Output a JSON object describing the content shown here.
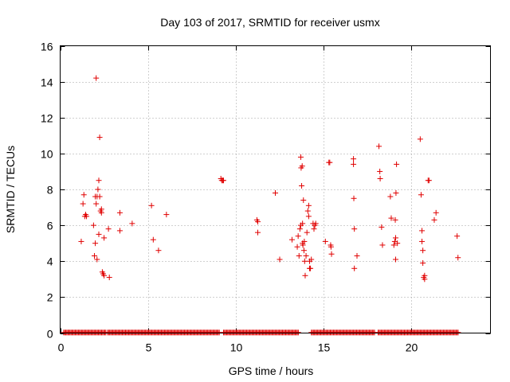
{
  "chart_data": {
    "type": "scatter",
    "title": "Day 103 of 2017, SRMTID for receiver usmx",
    "xlabel": "GPS time / hours",
    "ylabel": "SRMTID / TECUs",
    "xlim": [
      0,
      24.5
    ],
    "ylim": [
      0,
      16
    ],
    "xticks": [
      0,
      5,
      10,
      15,
      20
    ],
    "yticks": [
      0,
      2,
      4,
      6,
      8,
      10,
      12,
      14,
      16
    ],
    "grid": true,
    "marker": "plus",
    "color": "#e00000",
    "baseline": {
      "y": 0.03,
      "segments": [
        [
          0.2,
          2.6
        ],
        [
          2.7,
          9.1
        ],
        [
          9.3,
          13.6
        ],
        [
          14.3,
          17.9
        ],
        [
          18.1,
          22.7
        ]
      ],
      "step": 0.06
    },
    "points": [
      [
        1.2,
        5.1
      ],
      [
        1.3,
        7.2
      ],
      [
        1.35,
        7.7
      ],
      [
        1.4,
        6.5
      ],
      [
        1.45,
        6.6
      ],
      [
        1.5,
        6.5
      ],
      [
        1.9,
        6.0
      ],
      [
        1.95,
        4.3
      ],
      [
        2.0,
        5.0
      ],
      [
        2.0,
        7.6
      ],
      [
        2.05,
        7.2
      ],
      [
        2.05,
        14.2
      ],
      [
        2.1,
        4.1
      ],
      [
        2.1,
        7.6
      ],
      [
        2.15,
        8.0
      ],
      [
        2.2,
        8.5
      ],
      [
        2.2,
        5.5
      ],
      [
        2.25,
        7.6
      ],
      [
        2.25,
        10.9
      ],
      [
        2.3,
        6.8
      ],
      [
        2.35,
        6.7
      ],
      [
        2.35,
        6.9
      ],
      [
        2.4,
        3.4
      ],
      [
        2.45,
        3.3
      ],
      [
        2.5,
        3.2
      ],
      [
        2.5,
        5.3
      ],
      [
        2.75,
        5.8
      ],
      [
        2.8,
        3.1
      ],
      [
        3.4,
        6.7
      ],
      [
        3.4,
        5.7
      ],
      [
        4.1,
        6.1
      ],
      [
        5.2,
        7.1
      ],
      [
        5.3,
        5.2
      ],
      [
        5.6,
        4.6
      ],
      [
        6.05,
        6.6
      ],
      [
        9.15,
        8.6
      ],
      [
        9.2,
        8.5
      ],
      [
        9.25,
        8.5
      ],
      [
        9.3,
        8.5
      ],
      [
        11.2,
        6.3
      ],
      [
        11.25,
        6.2
      ],
      [
        11.25,
        5.6
      ],
      [
        12.25,
        7.8
      ],
      [
        12.5,
        4.1
      ],
      [
        13.2,
        5.2
      ],
      [
        13.5,
        4.8
      ],
      [
        13.55,
        5.4
      ],
      [
        13.6,
        4.3
      ],
      [
        13.65,
        5.8
      ],
      [
        13.7,
        6.0
      ],
      [
        13.7,
        9.8
      ],
      [
        13.72,
        9.2
      ],
      [
        13.75,
        8.2
      ],
      [
        13.78,
        9.3
      ],
      [
        13.8,
        5.0
      ],
      [
        13.8,
        6.1
      ],
      [
        13.82,
        4.9
      ],
      [
        13.85,
        7.4
      ],
      [
        13.88,
        4.6
      ],
      [
        13.9,
        5.1
      ],
      [
        13.92,
        4.0
      ],
      [
        13.95,
        3.2
      ],
      [
        14.0,
        4.3
      ],
      [
        14.05,
        5.6
      ],
      [
        14.1,
        6.8
      ],
      [
        14.15,
        7.1
      ],
      [
        14.15,
        6.5
      ],
      [
        14.2,
        3.6
      ],
      [
        14.2,
        4.0
      ],
      [
        14.25,
        3.6
      ],
      [
        14.3,
        4.1
      ],
      [
        14.4,
        6.1
      ],
      [
        14.45,
        5.8
      ],
      [
        14.5,
        6.0
      ],
      [
        14.55,
        6.1
      ],
      [
        15.1,
        5.1
      ],
      [
        15.3,
        9.5
      ],
      [
        15.35,
        9.5
      ],
      [
        15.4,
        4.9
      ],
      [
        15.42,
        4.8
      ],
      [
        15.45,
        4.4
      ],
      [
        16.7,
        9.7
      ],
      [
        16.7,
        9.4
      ],
      [
        16.72,
        7.5
      ],
      [
        16.75,
        5.8
      ],
      [
        16.75,
        3.6
      ],
      [
        16.9,
        4.3
      ],
      [
        18.15,
        10.4
      ],
      [
        18.2,
        9.0
      ],
      [
        18.22,
        8.6
      ],
      [
        18.3,
        5.9
      ],
      [
        18.35,
        4.9
      ],
      [
        18.8,
        7.6
      ],
      [
        18.85,
        6.4
      ],
      [
        19.0,
        4.9
      ],
      [
        19.05,
        5.1
      ],
      [
        19.08,
        6.3
      ],
      [
        19.1,
        5.3
      ],
      [
        19.12,
        7.8
      ],
      [
        19.15,
        9.4
      ],
      [
        19.1,
        4.1
      ],
      [
        19.2,
        5.0
      ],
      [
        20.5,
        10.8
      ],
      [
        20.55,
        7.7
      ],
      [
        20.6,
        5.7
      ],
      [
        20.6,
        5.1
      ],
      [
        20.65,
        4.6
      ],
      [
        20.65,
        3.9
      ],
      [
        20.7,
        3.1
      ],
      [
        20.75,
        3.0
      ],
      [
        20.75,
        3.2
      ],
      [
        20.95,
        8.5
      ],
      [
        21.0,
        8.5
      ],
      [
        21.3,
        6.3
      ],
      [
        21.4,
        6.7
      ],
      [
        22.6,
        5.4
      ],
      [
        22.65,
        4.2
      ]
    ]
  }
}
